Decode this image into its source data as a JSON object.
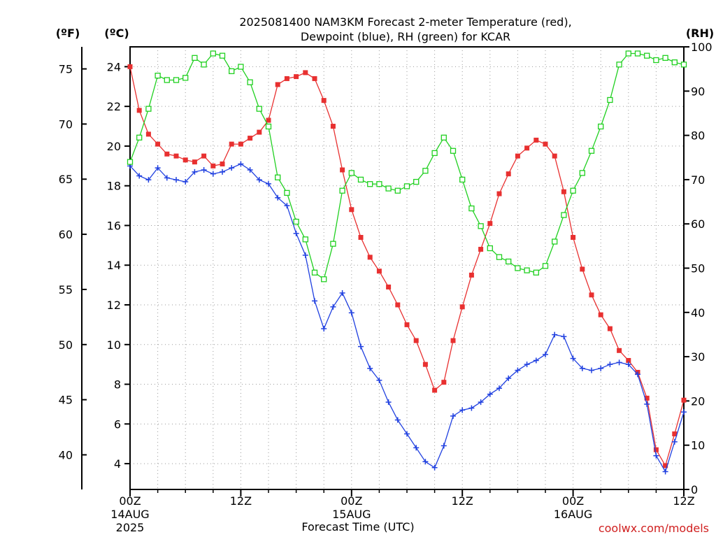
{
  "chart_data": {
    "type": "line",
    "title_line1": "2025081400 NAM3KM Forecast 2-meter Temperature (red),",
    "title_line2": "Dewpoint (blue), RH (green) for KCAR",
    "xlabel": "Forecast Time (UTC)",
    "credit": "coolwx.com/models",
    "axis_units": {
      "fahrenheit": "(ºF)",
      "celsius": "(ºC)",
      "rh": "(RH)"
    },
    "xlim": [
      0,
      60
    ],
    "ylim_celsius": [
      2.7,
      25.0
    ],
    "ylim_rh": [
      0,
      100
    ],
    "x_ticks": [
      {
        "x": 0,
        "label": "00Z",
        "sub1": "14AUG",
        "sub2": "2025"
      },
      {
        "x": 12,
        "label": "12Z",
        "sub1": "",
        "sub2": ""
      },
      {
        "x": 24,
        "label": "00Z",
        "sub1": "15AUG",
        "sub2": ""
      },
      {
        "x": 36,
        "label": "12Z",
        "sub1": "",
        "sub2": ""
      },
      {
        "x": 48,
        "label": "00Z",
        "sub1": "16AUG",
        "sub2": ""
      },
      {
        "x": 60,
        "label": "12Z",
        "sub1": "",
        "sub2": ""
      }
    ],
    "celsius_ticks": [
      4,
      6,
      8,
      10,
      12,
      14,
      16,
      18,
      20,
      22,
      24
    ],
    "fahrenheit_ticks": [
      40,
      45,
      50,
      55,
      60,
      65,
      70,
      75
    ],
    "rh_ticks": [
      0,
      10,
      20,
      30,
      40,
      50,
      60,
      70,
      80,
      90,
      100
    ],
    "colors": {
      "temperature": "#e83030",
      "dewpoint": "#2040e0",
      "rh": "#20d020"
    },
    "x": [
      0,
      1,
      2,
      3,
      4,
      5,
      6,
      7,
      8,
      9,
      10,
      11,
      12,
      13,
      14,
      15,
      16,
      17,
      18,
      19,
      20,
      21,
      22,
      23,
      24,
      25,
      26,
      27,
      28,
      29,
      30,
      31,
      32,
      33,
      34,
      35,
      36,
      37,
      38,
      39,
      40,
      41,
      42,
      43,
      44,
      45,
      46,
      47,
      48,
      49,
      50,
      51,
      52,
      53,
      54,
      55,
      56,
      57,
      58,
      59,
      60
    ],
    "series": [
      {
        "name": "Temperature",
        "axis": "celsius",
        "marker": "filled-square",
        "values": [
          24.0,
          21.8,
          20.6,
          20.1,
          19.6,
          19.5,
          19.3,
          19.2,
          19.5,
          19.0,
          19.1,
          20.1,
          20.1,
          20.4,
          20.7,
          21.3,
          23.1,
          23.4,
          23.5,
          23.7,
          23.4,
          22.3,
          21.0,
          18.8,
          16.8,
          15.4,
          14.4,
          13.7,
          12.9,
          12.0,
          11.0,
          10.2,
          9.0,
          7.7,
          8.1,
          10.2,
          11.9,
          13.5,
          14.8,
          16.1,
          17.6,
          18.6,
          19.5,
          19.9,
          20.3,
          20.1,
          19.5,
          17.7,
          15.4,
          13.8,
          12.5,
          11.5,
          10.8,
          9.7,
          9.2,
          8.6,
          7.3,
          4.7,
          3.9,
          5.5,
          7.2
        ]
      },
      {
        "name": "Dewpoint",
        "axis": "celsius",
        "marker": "plus",
        "values": [
          19.0,
          18.5,
          18.3,
          18.9,
          18.4,
          18.3,
          18.2,
          18.7,
          18.8,
          18.6,
          18.7,
          18.9,
          19.1,
          18.8,
          18.3,
          18.1,
          17.4,
          17.0,
          15.6,
          14.5,
          12.2,
          10.8,
          11.9,
          12.6,
          11.6,
          9.9,
          8.8,
          8.2,
          7.1,
          6.2,
          5.5,
          4.8,
          4.1,
          3.8,
          4.9,
          6.4,
          6.7,
          6.8,
          7.1,
          7.5,
          7.8,
          8.3,
          8.7,
          9.0,
          9.2,
          9.5,
          10.5,
          10.4,
          9.3,
          8.8,
          8.7,
          8.8,
          9.0,
          9.1,
          9.0,
          8.5,
          7.0,
          4.4,
          3.6,
          5.1,
          6.6
        ]
      },
      {
        "name": "RH",
        "axis": "rh",
        "marker": "open-square",
        "values": [
          74,
          79.5,
          86,
          93.5,
          92.5,
          92.5,
          93,
          97.5,
          96,
          98.5,
          98,
          94.5,
          95.5,
          92,
          86,
          82,
          70.5,
          67,
          60.5,
          56.5,
          49,
          47.5,
          55.5,
          67.5,
          71.5,
          70,
          69,
          69,
          68,
          67.5,
          68.5,
          69.5,
          72,
          76,
          79.5,
          76.5,
          70,
          63.5,
          59.5,
          54.5,
          52.5,
          51.5,
          50,
          49.5,
          49,
          50.5,
          56,
          62,
          67.5,
          71.5,
          76.5,
          82,
          88,
          96,
          98.5,
          98.5,
          98,
          97,
          97.5,
          96.5,
          96
        ]
      }
    ]
  }
}
